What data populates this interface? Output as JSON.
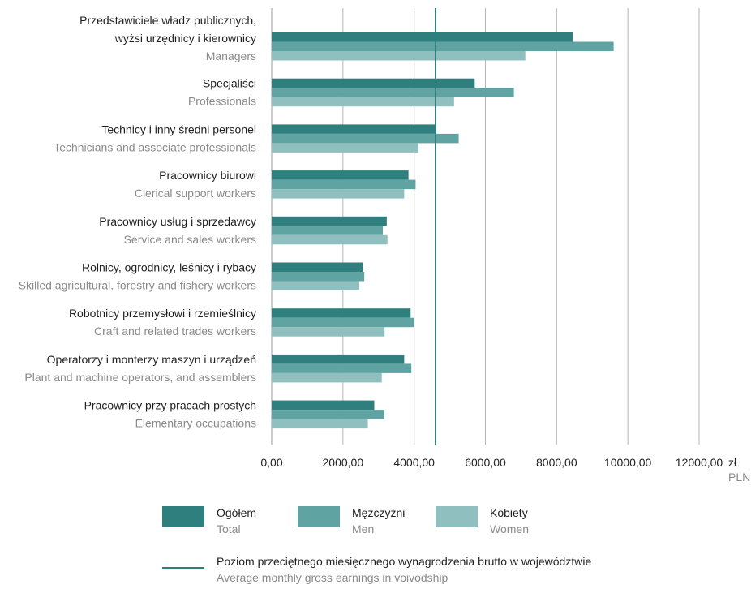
{
  "chart_data": {
    "type": "bar",
    "orientation": "horizontal",
    "categories": [
      {
        "pl": "Przedstawiciele władz publicznych,",
        "pl2": "wyżsi urzędnicy i kierownicy",
        "en": "Managers"
      },
      {
        "pl": "Specjaliści",
        "pl2": "",
        "en": "Professionals"
      },
      {
        "pl": "Technicy i inny średni personel",
        "pl2": "",
        "en": "Technicians and associate professionals"
      },
      {
        "pl": "Pracownicy biurowi",
        "pl2": "",
        "en": "Clerical support workers"
      },
      {
        "pl": "Pracownicy usług i sprzedawcy",
        "pl2": "",
        "en": "Service and sales workers"
      },
      {
        "pl": "Rolnicy, ogrodnicy, leśnicy i rybacy",
        "pl2": "",
        "en": "Skilled agricultural, forestry and fishery workers"
      },
      {
        "pl": "Robotnicy przemysłowi i rzemieślnicy",
        "pl2": "",
        "en": "Craft and related trades workers"
      },
      {
        "pl": "Operatorzy i monterzy maszyn i urządzeń",
        "pl2": "",
        "en": "Plant and machine operators, and assemblers"
      },
      {
        "pl": "Pracownicy przy pracach prostych",
        "pl2": "",
        "en": "Elementary occupations"
      }
    ],
    "series": [
      {
        "name": "Ogółem",
        "name_en": "Total",
        "color": "#2f7f7f",
        "values": [
          8450,
          5700,
          4620,
          3840,
          3230,
          2560,
          3900,
          3720,
          2880
        ]
      },
      {
        "name": "Mężczyźni",
        "name_en": "Men",
        "color": "#5fa3a2",
        "values": [
          9600,
          6800,
          5250,
          4040,
          3120,
          2600,
          4000,
          3920,
          3160
        ]
      },
      {
        "name": "Kobiety",
        "name_en": "Women",
        "color": "#8fbfbe",
        "values": [
          7120,
          5120,
          4120,
          3720,
          3250,
          2460,
          3170,
          3090,
          2700
        ]
      }
    ],
    "reference_line": {
      "value": 4600,
      "color": "#2f7f7f",
      "label": "Poziom przeciętnego miesięcznego wynagrodzenia brutto w województwie",
      "label_en": "Average monthly gross earnings in voivodship"
    },
    "xlim": [
      0,
      12000
    ],
    "xticks": [
      0,
      2000,
      4000,
      6000,
      8000,
      10000,
      12000
    ],
    "tick_labels": [
      "0,00",
      "2000,00",
      "4000,00",
      "6000,00",
      "8000,00",
      "10000,00",
      "12000,00"
    ],
    "unit": "zł",
    "unit_en": "PLN",
    "grid": true,
    "legend_position": "bottom"
  }
}
